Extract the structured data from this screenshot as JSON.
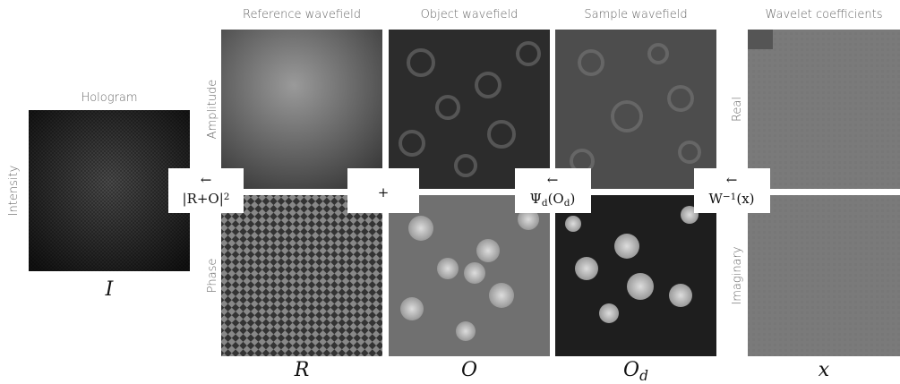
{
  "hologram": {
    "title": "Hologram",
    "row_label": "Intensity",
    "symbol": "I"
  },
  "columns": [
    {
      "title": "Reference wavefield",
      "symbol": [
        {
          "text": "R"
        }
      ]
    },
    {
      "title": "Object wavefield",
      "symbol": [
        {
          "text": "O"
        }
      ]
    },
    {
      "title": "Sample wavefield",
      "symbol": [
        {
          "text": "O"
        },
        {
          "sub": "d"
        }
      ]
    },
    {
      "title": "Wavelet coefficients",
      "symbol": [
        {
          "text": "x"
        }
      ]
    }
  ],
  "row_labels": {
    "left_top": "Amplitude",
    "left_bottom": "Phase",
    "right_top": "Real",
    "right_bottom": "Imaginary"
  },
  "operators": [
    {
      "arrow": "←",
      "parts": [
        {
          "text": "|R+O|"
        },
        {
          "sup": "2"
        }
      ]
    },
    {
      "parts": [
        {
          "text": "+"
        }
      ]
    },
    {
      "arrow": "←",
      "parts": [
        {
          "text": "Ψ"
        },
        {
          "sub": "d"
        },
        {
          "text": "(O"
        },
        {
          "sub": "d"
        },
        {
          "text": ")"
        }
      ]
    },
    {
      "arrow": "←",
      "parts": [
        {
          "text": "W"
        },
        {
          "sup": "−1"
        },
        {
          "text": "(x)"
        }
      ]
    }
  ]
}
